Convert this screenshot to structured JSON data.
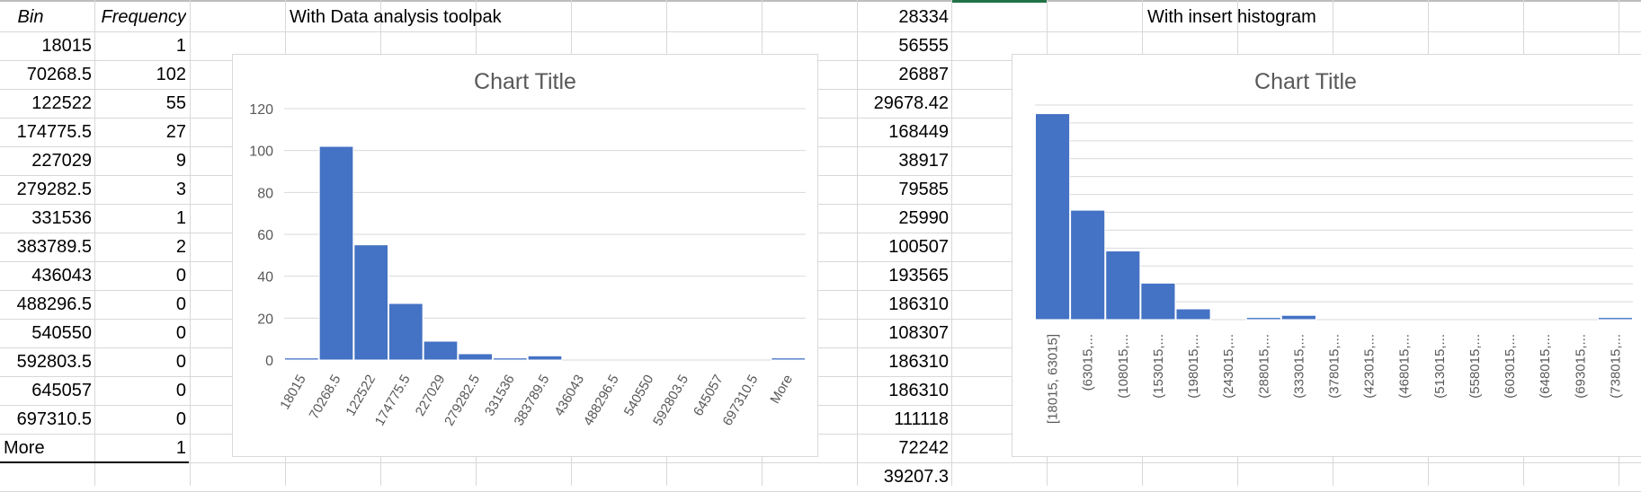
{
  "frequency_table": {
    "headers": [
      "Bin",
      "Frequency"
    ],
    "rows": [
      [
        "18015",
        "1"
      ],
      [
        "70268.5",
        "102"
      ],
      [
        "122522",
        "55"
      ],
      [
        "174775.5",
        "27"
      ],
      [
        "227029",
        "9"
      ],
      [
        "279282.5",
        "3"
      ],
      [
        "331536",
        "1"
      ],
      [
        "383789.5",
        "2"
      ],
      [
        "436043",
        "0"
      ],
      [
        "488296.5",
        "0"
      ],
      [
        "540550",
        "0"
      ],
      [
        "592803.5",
        "0"
      ],
      [
        "645057",
        "0"
      ],
      [
        "697310.5",
        "0"
      ],
      [
        "More",
        "1"
      ]
    ]
  },
  "labels": {
    "toolpak": "With Data analysis toolpak",
    "insert_histogram": "With insert histogram"
  },
  "data_column": [
    "28334",
    "56555",
    "26887",
    "29678.42",
    "168449",
    "38917",
    "79585",
    "25990",
    "100507",
    "193565",
    "186310",
    "108307",
    "186310",
    "186310",
    "111118",
    "72242",
    "39207.3"
  ],
  "colors": {
    "bar": "#4472c4",
    "grid": "#d9d9d9",
    "title": "#595959",
    "axis_text": "#595959"
  },
  "chart_data": [
    {
      "type": "bar",
      "title": "Chart Title",
      "categories": [
        "18015",
        "70268.5",
        "122522",
        "174775.5",
        "227029",
        "279282.5",
        "331536",
        "383789.5",
        "436043",
        "488296.5",
        "540550",
        "592803.5",
        "645057",
        "697310.5",
        "More"
      ],
      "values": [
        1,
        102,
        55,
        27,
        9,
        3,
        1,
        2,
        0,
        0,
        0,
        0,
        0,
        0,
        1
      ],
      "ylim": [
        0,
        120
      ],
      "yticks": [
        "0",
        "20",
        "40",
        "60",
        "80",
        "100",
        "120"
      ],
      "grid": true,
      "xlabel": "",
      "ylabel": ""
    },
    {
      "type": "bar",
      "title": "Chart Title",
      "categories": [
        "[18015, 63015]",
        "(63015,...",
        "(108015,...",
        "(153015,...",
        "(198015,...",
        "(243015,...",
        "(288015,...",
        "(333015,...",
        "(378015,...",
        "(423015,...",
        "(468015,...",
        "(513015,...",
        "(558015,...",
        "(603015,...",
        "(648015,...",
        "(693015,...",
        "(738015,..."
      ],
      "values": [
        96,
        51,
        32,
        17,
        5,
        0,
        1,
        2,
        0,
        0,
        0,
        0,
        0,
        0,
        0,
        0,
        1
      ],
      "ylim": [
        0,
        100
      ],
      "grid": true,
      "xlabel": "",
      "ylabel": ""
    }
  ]
}
